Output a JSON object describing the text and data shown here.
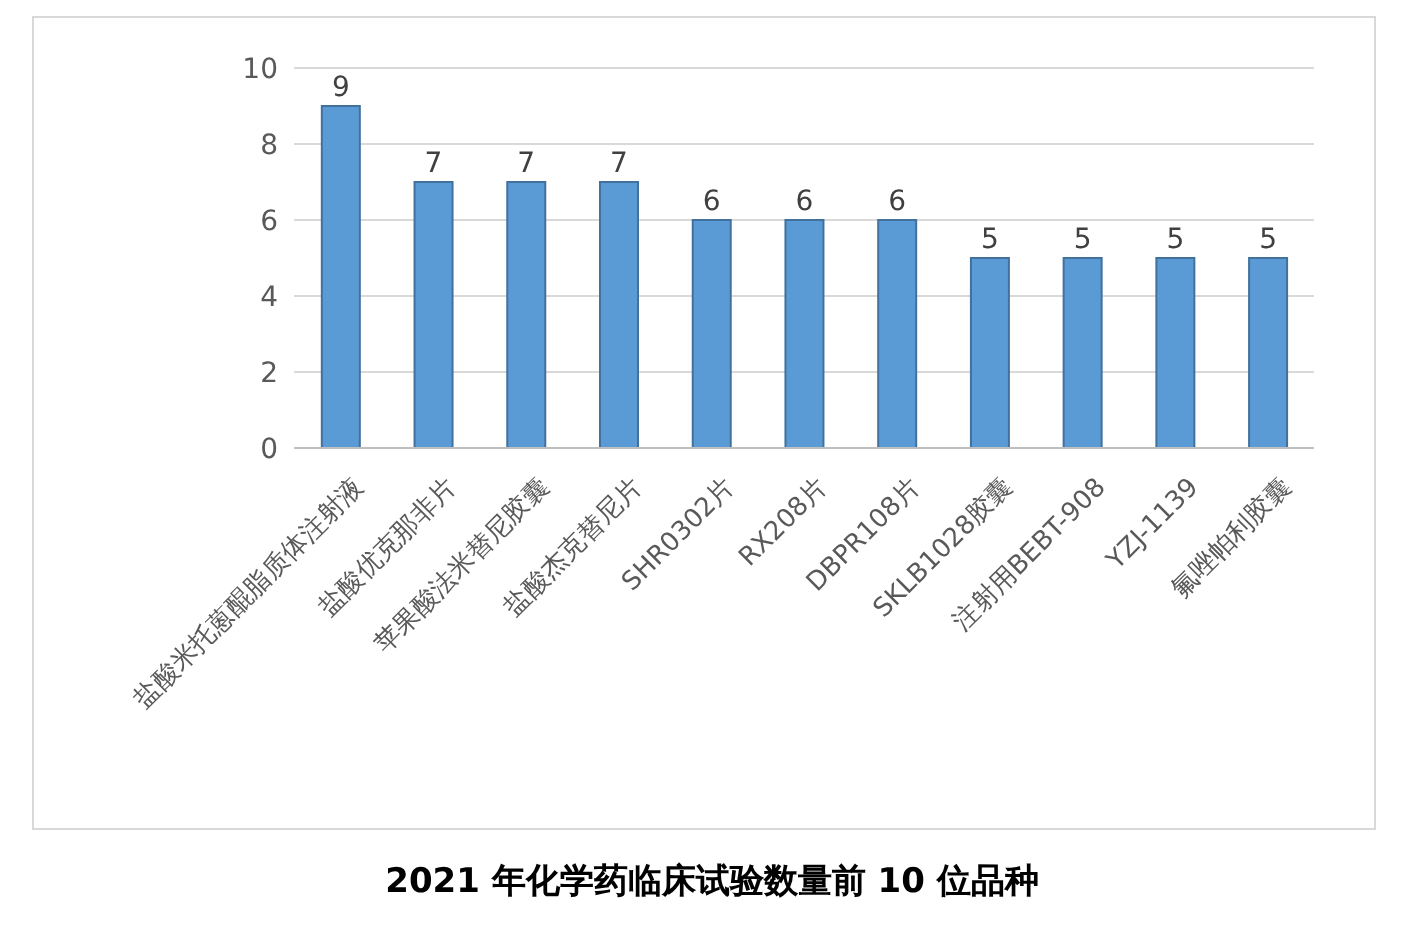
{
  "chart_data": {
    "type": "bar",
    "title": "2021 年化学药临床试验数量前 10 位品种",
    "categories": [
      "盐酸米托蒽醌脂质体注射液",
      "盐酸优克那非片",
      "苹果酸法米替尼胶囊",
      "盐酸杰克替尼片",
      "SHR0302片",
      "RX208片",
      "DBPR108片",
      "SKLB1028胶囊",
      "注射用BEBT-908",
      "YZJ-1139",
      "氟唑帕利胶囊"
    ],
    "values": [
      9,
      7,
      7,
      7,
      6,
      6,
      6,
      5,
      5,
      5,
      5
    ],
    "color": "#5b9bd5",
    "ylim": [
      0,
      10
    ],
    "yticks": [
      0,
      2,
      4,
      6,
      8,
      10
    ],
    "grid": "y",
    "data_labels": true,
    "legend": false
  }
}
